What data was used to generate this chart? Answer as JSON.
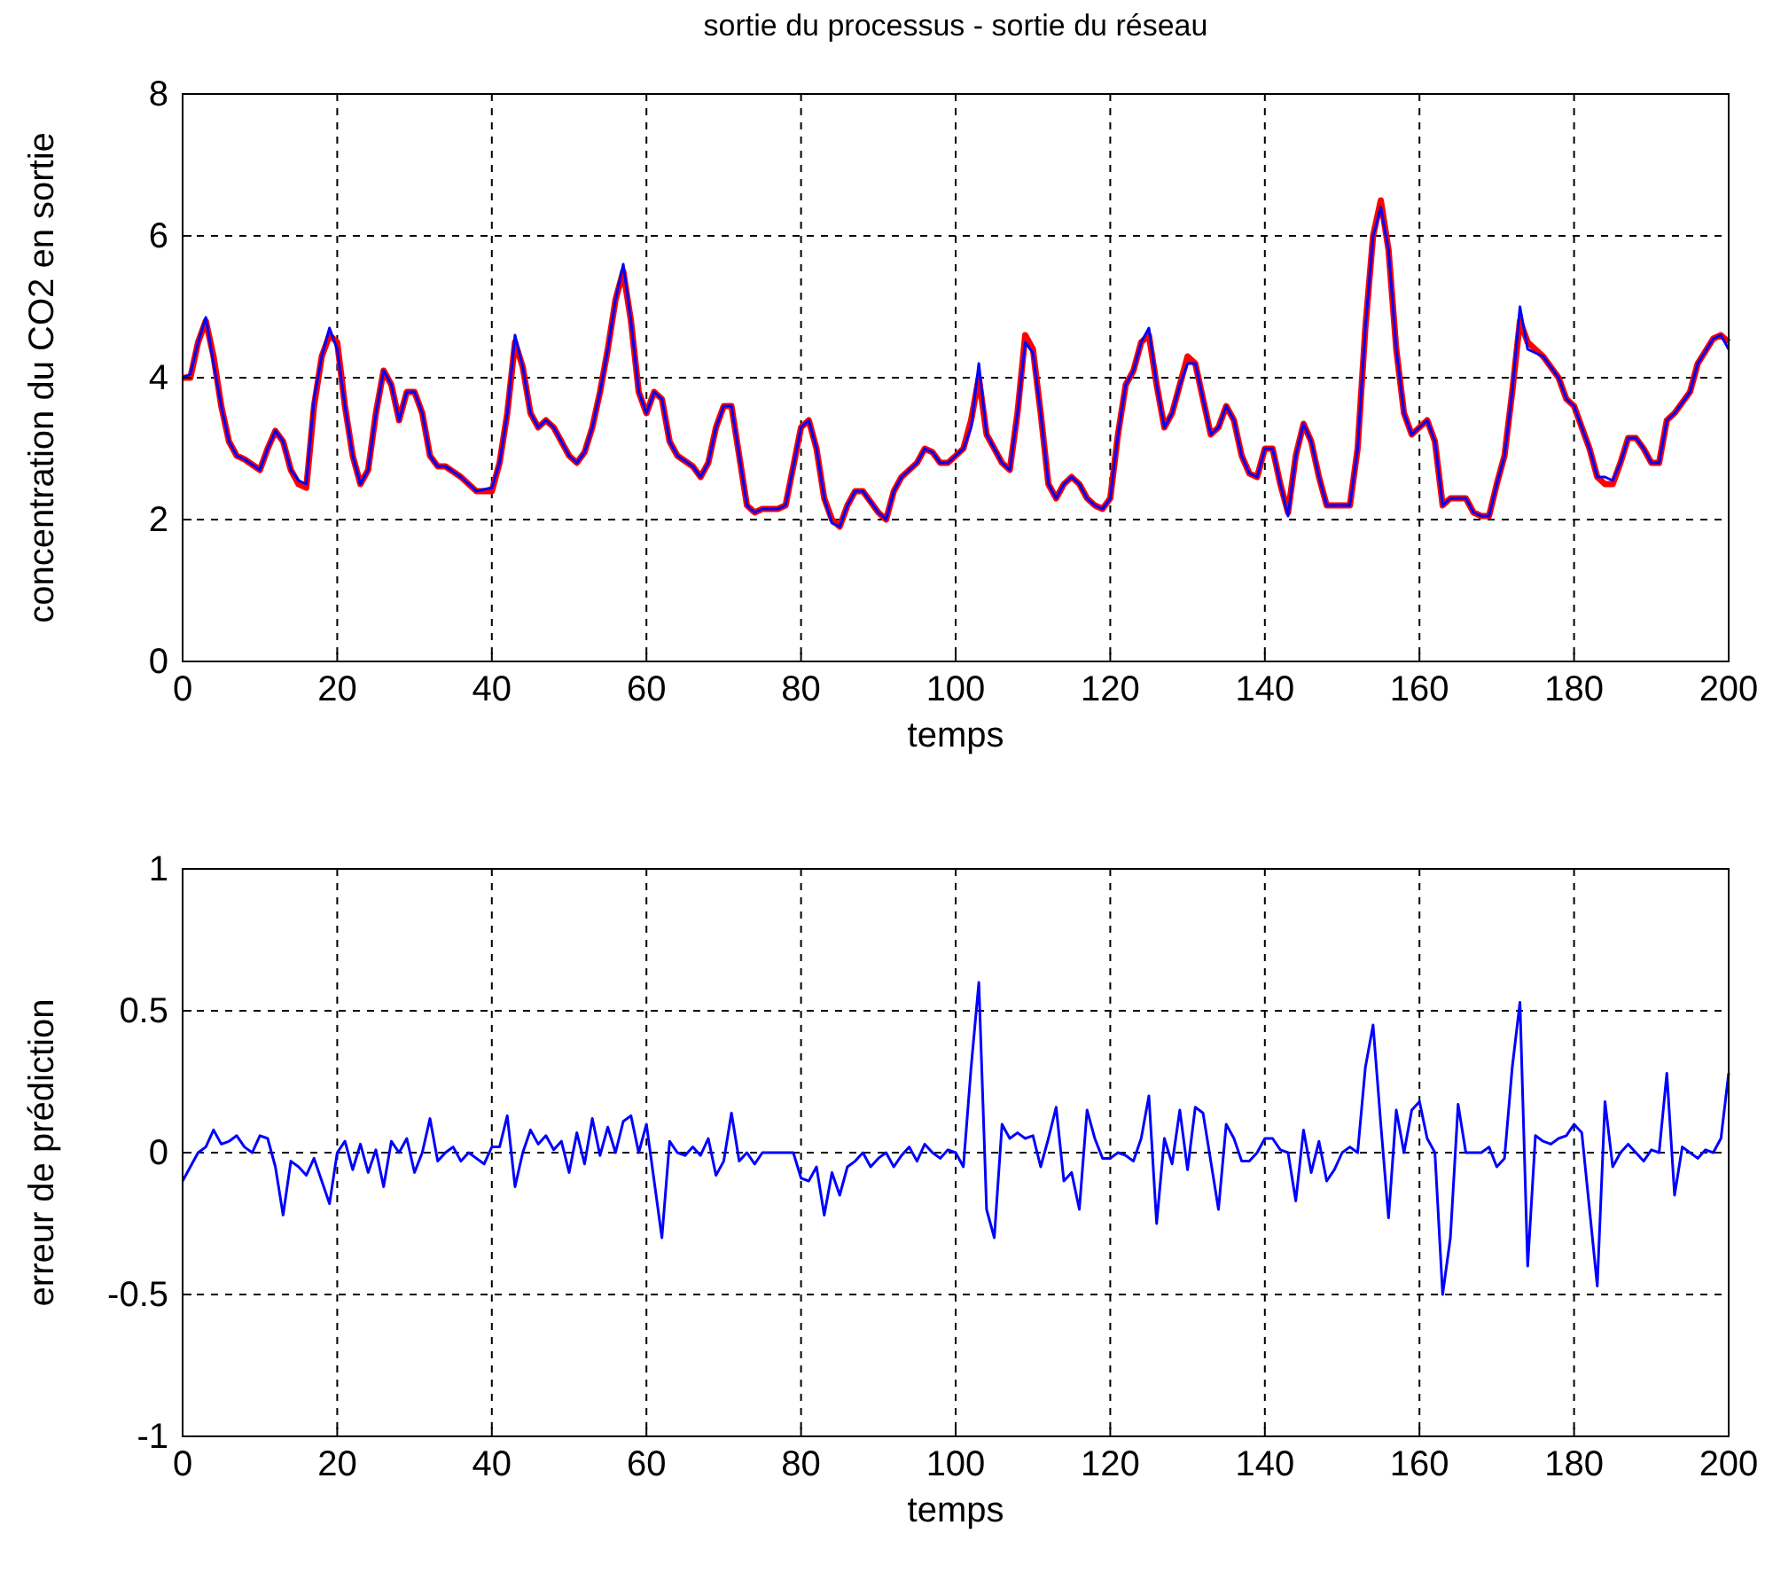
{
  "chart_data": [
    {
      "type": "line",
      "title": "sortie du processus - sortie du réseau",
      "xlabel": "temps",
      "ylabel": "concentration du CO2 en sortie",
      "xlim": [
        0,
        200
      ],
      "ylim": [
        0,
        8
      ],
      "xticks": [
        0,
        20,
        40,
        60,
        80,
        100,
        120,
        140,
        160,
        180,
        200
      ],
      "yticks": [
        0,
        2,
        4,
        6,
        8
      ],
      "grid": true,
      "line_style": "solid",
      "series": [
        {
          "color": "#ff0000",
          "x": [
            0,
            1,
            2,
            3,
            4,
            5,
            6,
            7,
            8,
            10,
            11,
            12,
            13,
            14,
            15,
            16,
            17,
            18,
            19,
            20,
            21,
            22,
            23,
            24,
            25,
            26,
            27,
            28,
            29,
            30,
            31,
            32,
            33,
            34,
            36,
            38,
            40,
            41,
            42,
            43,
            44,
            45,
            46,
            47,
            48,
            50,
            51,
            52,
            53,
            54,
            55,
            56,
            57,
            58,
            59,
            60,
            61,
            62,
            63,
            64,
            66,
            67,
            68,
            69,
            70,
            71,
            72,
            73,
            74,
            75,
            77,
            78,
            80,
            81,
            82,
            83,
            84,
            85,
            86,
            87,
            88,
            89,
            90,
            91,
            92,
            93,
            95,
            96,
            97,
            98,
            99,
            100,
            101,
            102,
            103,
            104,
            105,
            106,
            107,
            108,
            109,
            110,
            111,
            112,
            113,
            114,
            115,
            116,
            117,
            118,
            119,
            120,
            121,
            122,
            123,
            124,
            125,
            126,
            127,
            128,
            129,
            130,
            131,
            132,
            133,
            134,
            135,
            136,
            137,
            138,
            139,
            140,
            141,
            142,
            143,
            144,
            145,
            146,
            147,
            148,
            149,
            151,
            152,
            153,
            154,
            155,
            156,
            157,
            158,
            159,
            160,
            161,
            162,
            163,
            164,
            166,
            167,
            168,
            169,
            170,
            171,
            172,
            173,
            174,
            176,
            178,
            179,
            180,
            181,
            182,
            183,
            184,
            185,
            186,
            187,
            188,
            189,
            190,
            191,
            192,
            193,
            195,
            196,
            198,
            199,
            200
          ],
          "values": [
            4.0,
            4.0,
            4.5,
            4.8,
            4.3,
            3.6,
            3.1,
            2.9,
            2.85,
            2.7,
            3.0,
            3.25,
            3.1,
            2.7,
            2.5,
            2.45,
            3.6,
            4.3,
            4.6,
            4.5,
            3.6,
            2.9,
            2.5,
            2.7,
            3.5,
            4.1,
            3.9,
            3.4,
            3.8,
            3.8,
            3.5,
            2.9,
            2.75,
            2.75,
            2.6,
            2.4,
            2.4,
            2.8,
            3.5,
            4.5,
            4.15,
            3.5,
            3.3,
            3.4,
            3.3,
            2.9,
            2.8,
            2.95,
            3.3,
            3.8,
            4.4,
            5.1,
            5.5,
            4.8,
            3.8,
            3.5,
            3.8,
            3.7,
            3.1,
            2.9,
            2.75,
            2.6,
            2.8,
            3.3,
            3.6,
            3.6,
            2.9,
            2.2,
            2.1,
            2.15,
            2.15,
            2.2,
            3.3,
            3.4,
            3.0,
            2.3,
            2.0,
            1.9,
            2.2,
            2.4,
            2.4,
            2.25,
            2.1,
            2.0,
            2.4,
            2.6,
            2.8,
            3.0,
            2.95,
            2.8,
            2.8,
            2.9,
            3.0,
            3.4,
            4.0,
            3.2,
            3.0,
            2.8,
            2.7,
            3.5,
            4.6,
            4.4,
            3.5,
            2.5,
            2.3,
            2.5,
            2.6,
            2.5,
            2.3,
            2.2,
            2.15,
            2.3,
            3.2,
            3.9,
            4.1,
            4.5,
            4.6,
            3.9,
            3.3,
            3.5,
            3.9,
            4.3,
            4.2,
            3.7,
            3.2,
            3.3,
            3.6,
            3.4,
            2.9,
            2.65,
            2.6,
            3.0,
            3.0,
            2.5,
            2.1,
            2.9,
            3.35,
            3.1,
            2.6,
            2.2,
            2.2,
            2.2,
            3.0,
            4.7,
            6.0,
            6.5,
            5.8,
            4.4,
            3.5,
            3.2,
            3.3,
            3.4,
            3.1,
            2.2,
            2.3,
            2.3,
            2.1,
            2.05,
            2.05,
            2.5,
            2.9,
            3.8,
            4.8,
            4.5,
            4.3,
            4.0,
            3.7,
            3.6,
            3.3,
            3.0,
            2.6,
            2.5,
            2.5,
            2.8,
            3.15,
            3.15,
            3.0,
            2.8,
            2.8,
            3.4,
            3.5,
            3.8,
            4.2,
            4.55,
            4.6,
            4.5
          ]
        },
        {
          "color": "#0000ff",
          "x": [
            0,
            1,
            2,
            3,
            4,
            5,
            6,
            7,
            8,
            10,
            11,
            12,
            13,
            14,
            15,
            16,
            17,
            18,
            19,
            20,
            21,
            22,
            23,
            24,
            25,
            26,
            27,
            28,
            29,
            30,
            31,
            32,
            33,
            34,
            36,
            38,
            40,
            41,
            42,
            43,
            44,
            45,
            46,
            47,
            48,
            50,
            51,
            52,
            53,
            54,
            55,
            56,
            57,
            58,
            59,
            60,
            61,
            62,
            63,
            64,
            66,
            67,
            68,
            69,
            70,
            71,
            72,
            73,
            74,
            75,
            77,
            78,
            80,
            81,
            82,
            83,
            84,
            85,
            86,
            87,
            88,
            89,
            90,
            91,
            92,
            93,
            95,
            96,
            97,
            98,
            99,
            100,
            101,
            102,
            103,
            104,
            105,
            106,
            107,
            108,
            109,
            110,
            111,
            112,
            113,
            114,
            115,
            116,
            117,
            118,
            119,
            120,
            121,
            122,
            123,
            124,
            125,
            126,
            127,
            128,
            129,
            130,
            131,
            132,
            133,
            134,
            135,
            136,
            137,
            138,
            139,
            140,
            141,
            142,
            143,
            144,
            145,
            146,
            147,
            148,
            149,
            151,
            152,
            153,
            154,
            155,
            156,
            157,
            158,
            159,
            160,
            161,
            162,
            163,
            164,
            166,
            167,
            168,
            169,
            170,
            171,
            172,
            173,
            174,
            176,
            178,
            179,
            180,
            181,
            182,
            183,
            184,
            185,
            186,
            187,
            188,
            189,
            190,
            191,
            192,
            193,
            195,
            196,
            198,
            199,
            200
          ],
          "values": [
            4.0,
            4.05,
            4.5,
            4.85,
            4.2,
            3.6,
            3.1,
            2.9,
            2.85,
            2.7,
            3.0,
            3.25,
            3.1,
            2.7,
            2.55,
            2.5,
            3.7,
            4.3,
            4.7,
            4.4,
            3.6,
            2.9,
            2.5,
            2.7,
            3.5,
            4.1,
            3.9,
            3.4,
            3.8,
            3.8,
            3.5,
            2.9,
            2.75,
            2.75,
            2.6,
            2.4,
            2.45,
            2.8,
            3.5,
            4.6,
            4.15,
            3.5,
            3.3,
            3.4,
            3.3,
            2.9,
            2.8,
            2.95,
            3.3,
            3.8,
            4.4,
            5.1,
            5.6,
            4.8,
            3.8,
            3.5,
            3.8,
            3.7,
            3.1,
            2.9,
            2.75,
            2.6,
            2.8,
            3.3,
            3.6,
            3.6,
            2.9,
            2.2,
            2.1,
            2.15,
            2.15,
            2.2,
            3.3,
            3.4,
            3.0,
            2.3,
            1.95,
            1.9,
            2.2,
            2.4,
            2.4,
            2.25,
            2.1,
            2.0,
            2.4,
            2.6,
            2.8,
            3.0,
            2.95,
            2.8,
            2.8,
            2.9,
            3.0,
            3.3,
            4.2,
            3.2,
            3.0,
            2.8,
            2.7,
            3.5,
            4.5,
            4.35,
            3.5,
            2.5,
            2.3,
            2.5,
            2.6,
            2.5,
            2.3,
            2.2,
            2.15,
            2.3,
            3.2,
            3.9,
            4.1,
            4.5,
            4.7,
            3.9,
            3.3,
            3.5,
            3.9,
            4.2,
            4.2,
            3.7,
            3.2,
            3.3,
            3.6,
            3.4,
            2.9,
            2.65,
            2.6,
            3.0,
            3.0,
            2.5,
            2.05,
            2.9,
            3.35,
            3.1,
            2.6,
            2.2,
            2.2,
            2.2,
            3.0,
            4.7,
            6.0,
            6.4,
            5.8,
            4.4,
            3.5,
            3.2,
            3.3,
            3.4,
            3.1,
            2.2,
            2.3,
            2.3,
            2.1,
            2.05,
            2.05,
            2.5,
            2.9,
            3.8,
            5.0,
            4.4,
            4.3,
            4.0,
            3.7,
            3.6,
            3.3,
            3.0,
            2.6,
            2.6,
            2.55,
            2.8,
            3.15,
            3.15,
            3.0,
            2.8,
            2.8,
            3.4,
            3.5,
            3.8,
            4.2,
            4.55,
            4.6,
            4.4
          ]
        }
      ]
    },
    {
      "type": "line",
      "xlabel": "temps",
      "ylabel": "erreur de prédiction",
      "xlim": [
        0,
        200
      ],
      "ylim": [
        -1,
        1
      ],
      "xticks": [
        0,
        20,
        40,
        60,
        80,
        100,
        120,
        140,
        160,
        180,
        200
      ],
      "yticks": [
        -1,
        -0.5,
        0,
        0.5,
        1
      ],
      "grid": true,
      "line_style": "solid",
      "series": [
        {
          "color": "#0000ff",
          "x": [
            0,
            1,
            2,
            3,
            4,
            5,
            6,
            7,
            8,
            9,
            10,
            11,
            12,
            13,
            14,
            15,
            16,
            17,
            18,
            19,
            20,
            21,
            22,
            23,
            24,
            25,
            26,
            27,
            28,
            29,
            30,
            31,
            32,
            33,
            34,
            35,
            36,
            37,
            38,
            39,
            40,
            41,
            42,
            43,
            44,
            45,
            46,
            47,
            48,
            49,
            50,
            51,
            52,
            53,
            54,
            55,
            56,
            57,
            58,
            59,
            60,
            61,
            62,
            63,
            64,
            65,
            66,
            67,
            68,
            69,
            70,
            71,
            72,
            73,
            74,
            75,
            76,
            77,
            78,
            79,
            80,
            81,
            82,
            83,
            84,
            85,
            86,
            87,
            88,
            89,
            90,
            91,
            92,
            93,
            94,
            95,
            96,
            97,
            98,
            99,
            100,
            101,
            102,
            103,
            104,
            105,
            106,
            107,
            108,
            109,
            110,
            111,
            112,
            113,
            114,
            115,
            116,
            117,
            118,
            119,
            120,
            121,
            122,
            123,
            124,
            125,
            126,
            127,
            128,
            129,
            130,
            131,
            132,
            133,
            134,
            135,
            136,
            137,
            138,
            139,
            140,
            141,
            142,
            143,
            144,
            145,
            146,
            147,
            148,
            149,
            150,
            151,
            152,
            153,
            154,
            155,
            156,
            157,
            158,
            159,
            160,
            161,
            162,
            163,
            164,
            165,
            166,
            167,
            168,
            169,
            170,
            171,
            172,
            173,
            174,
            175,
            176,
            177,
            178,
            179,
            180,
            181,
            182,
            183,
            184,
            185,
            186,
            187,
            188,
            189,
            190,
            191,
            192,
            193,
            194,
            195,
            196,
            197,
            198,
            199,
            200
          ],
          "values": [
            -0.1,
            -0.05,
            0.0,
            0.02,
            0.08,
            0.03,
            0.04,
            0.06,
            0.02,
            0.0,
            0.06,
            0.05,
            -0.05,
            -0.22,
            -0.03,
            -0.05,
            -0.08,
            -0.02,
            -0.1,
            -0.18,
            0.0,
            0.04,
            -0.06,
            0.03,
            -0.07,
            0.01,
            -0.12,
            0.04,
            0.0,
            0.05,
            -0.07,
            0.0,
            0.12,
            -0.03,
            0.0,
            0.02,
            -0.03,
            0.0,
            -0.02,
            -0.04,
            0.02,
            0.02,
            0.13,
            -0.12,
            0.0,
            0.08,
            0.03,
            0.06,
            0.01,
            0.04,
            -0.07,
            0.07,
            -0.04,
            0.12,
            -0.01,
            0.09,
            0.0,
            0.11,
            0.13,
            0.0,
            0.1,
            -0.1,
            -0.3,
            0.04,
            0.0,
            -0.01,
            0.02,
            -0.01,
            0.05,
            -0.08,
            -0.03,
            0.14,
            -0.03,
            0.0,
            -0.04,
            0.0,
            0.0,
            0.0,
            0.0,
            0.0,
            -0.09,
            -0.1,
            -0.05,
            -0.22,
            -0.07,
            -0.15,
            -0.05,
            -0.03,
            0.0,
            -0.05,
            -0.02,
            0.0,
            -0.05,
            -0.01,
            0.02,
            -0.03,
            0.03,
            0.0,
            -0.02,
            0.01,
            0.0,
            -0.05,
            0.3,
            0.6,
            -0.2,
            -0.3,
            0.1,
            0.05,
            0.07,
            0.05,
            0.06,
            -0.05,
            0.05,
            0.16,
            -0.1,
            -0.07,
            -0.2,
            0.15,
            0.05,
            -0.02,
            -0.02,
            0.0,
            -0.01,
            -0.03,
            0.05,
            0.2,
            -0.25,
            0.05,
            -0.04,
            0.15,
            -0.06,
            0.16,
            0.14,
            -0.03,
            -0.2,
            0.1,
            0.05,
            -0.03,
            -0.03,
            0.0,
            0.05,
            0.05,
            0.01,
            0.0,
            -0.17,
            0.08,
            -0.07,
            0.04,
            -0.1,
            -0.06,
            0.0,
            0.02,
            0.0,
            0.3,
            0.45,
            0.1,
            -0.23,
            0.15,
            0.0,
            0.15,
            0.18,
            0.05,
            0.0,
            -0.5,
            -0.3,
            0.17,
            0.0,
            0.0,
            0.0,
            0.02,
            -0.05,
            -0.02,
            0.3,
            0.53,
            -0.4,
            0.06,
            0.04,
            0.03,
            0.05,
            0.06,
            0.1,
            0.07,
            -0.2,
            -0.47,
            0.18,
            -0.05,
            0.0,
            0.03,
            0.0,
            -0.03,
            0.01,
            0.0,
            0.28,
            -0.15,
            0.02,
            0.0,
            -0.02,
            0.01,
            0.0,
            0.05,
            0.28
          ]
        }
      ]
    }
  ]
}
